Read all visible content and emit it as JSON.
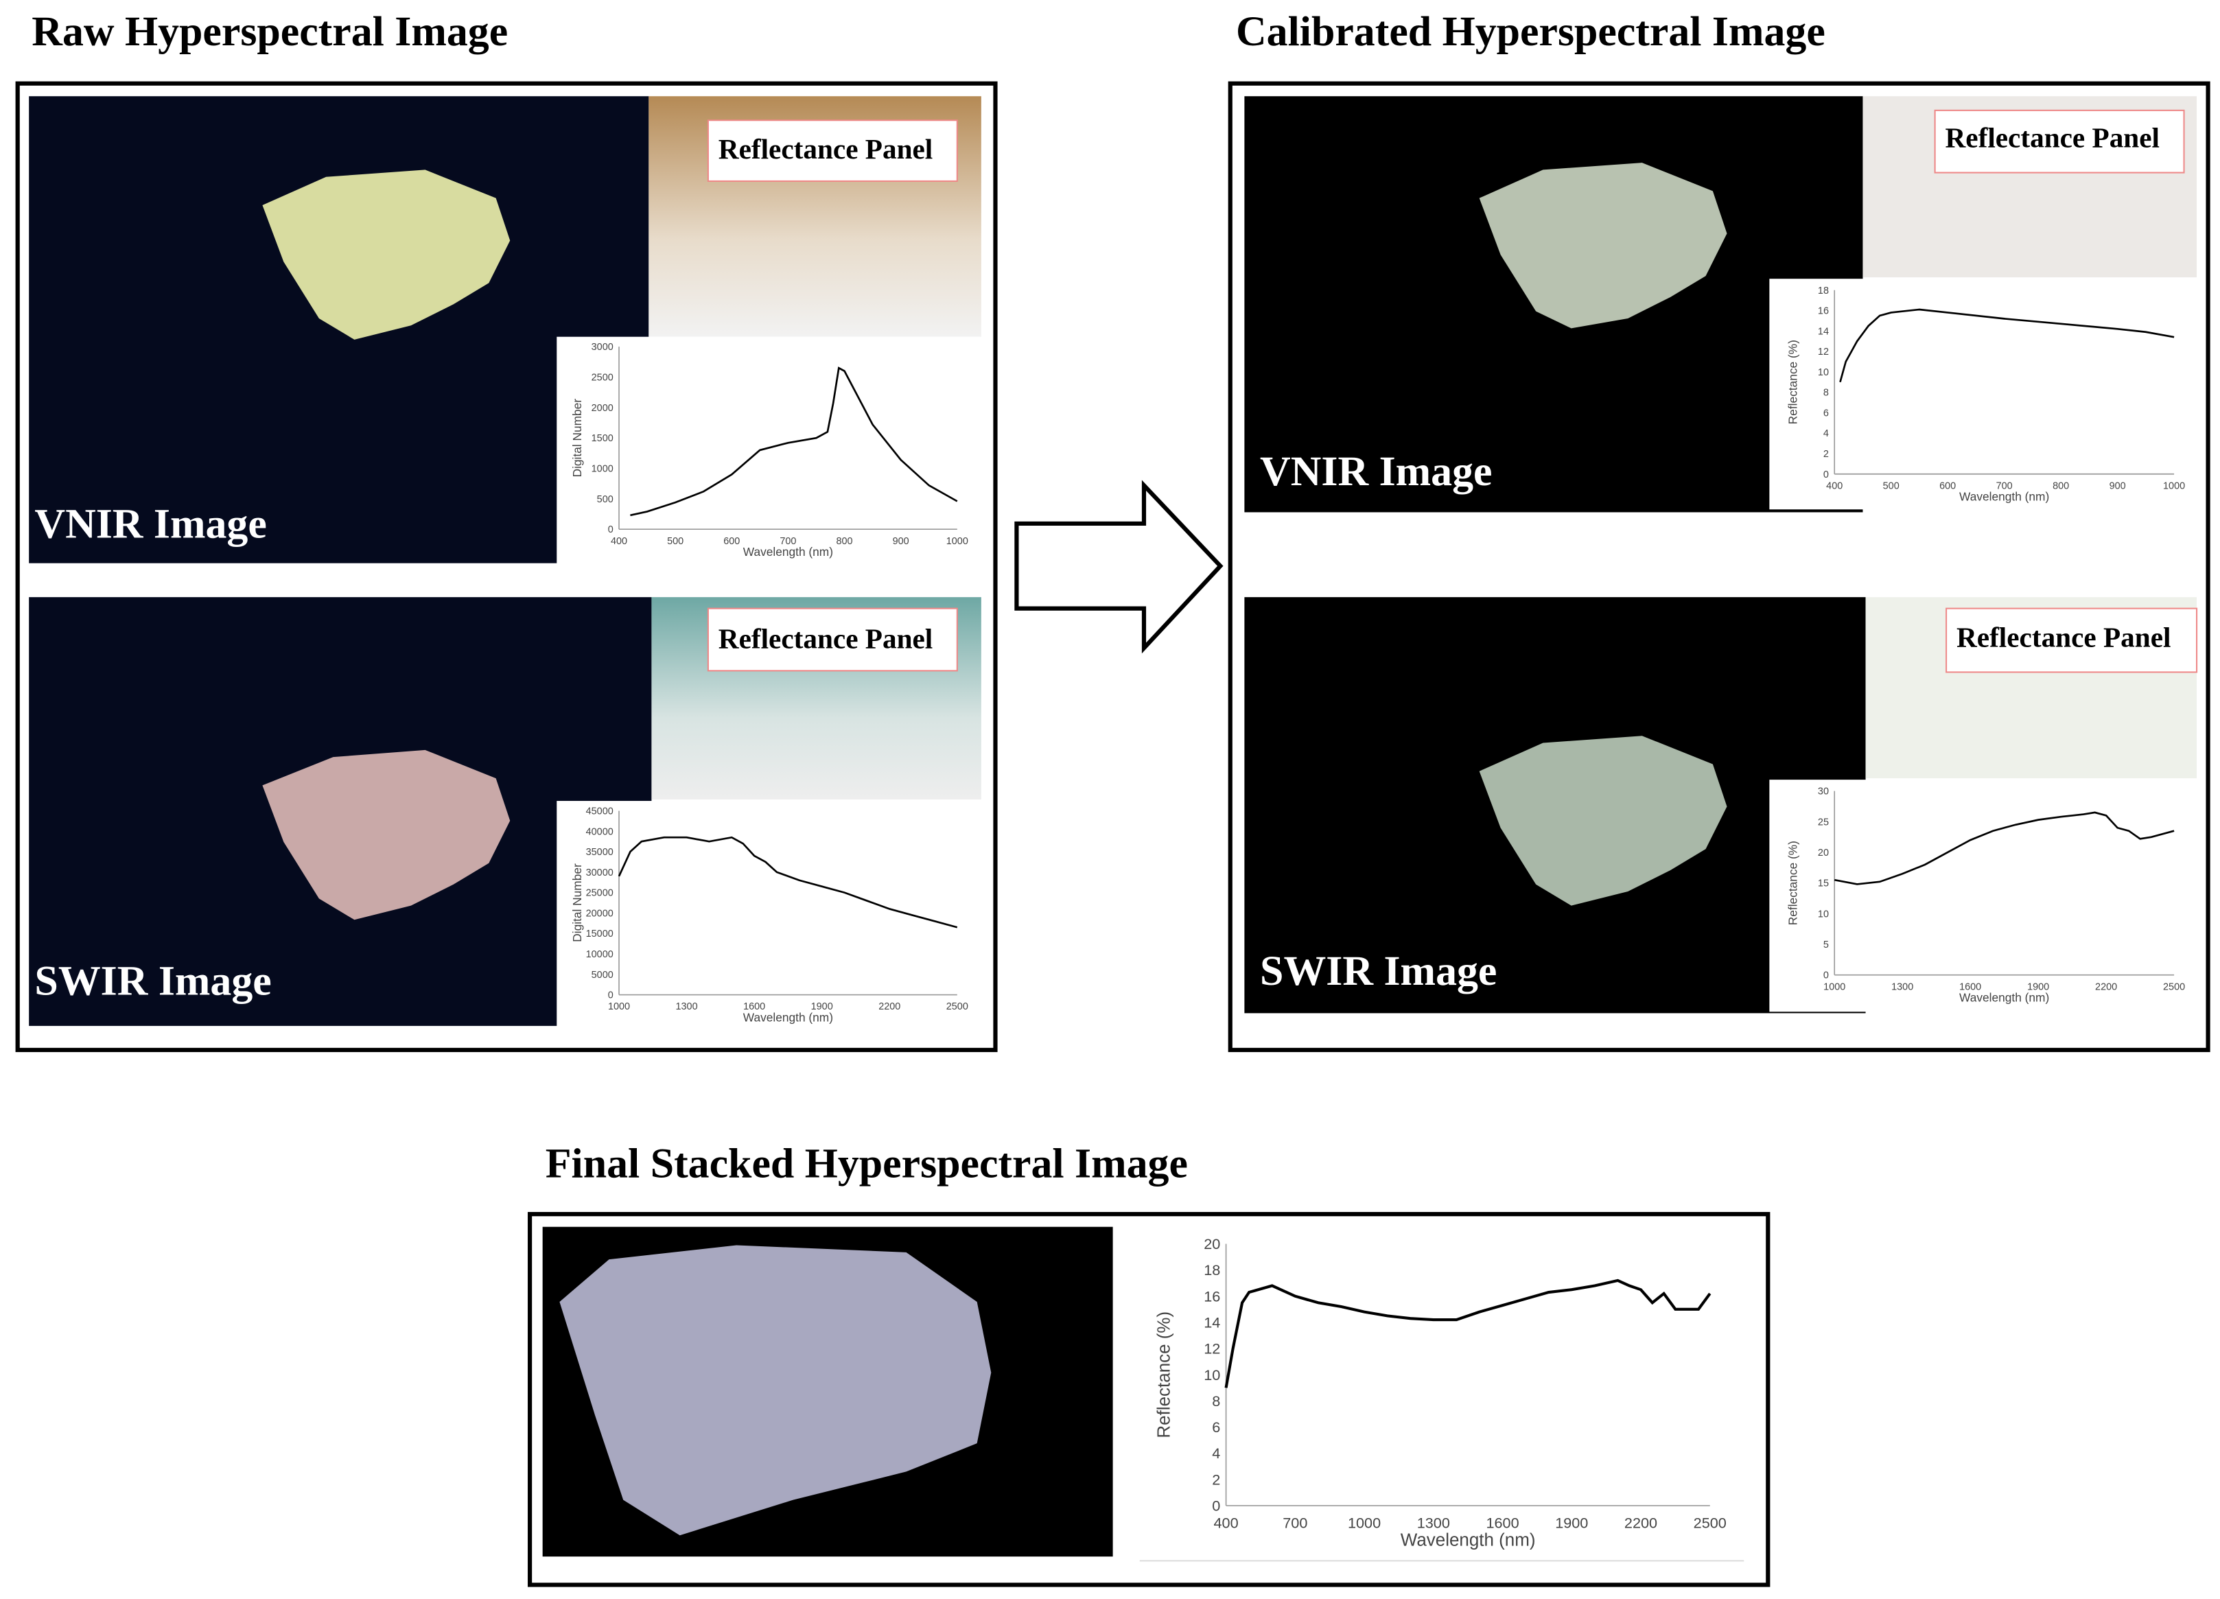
{
  "figure": {
    "raw_title": "Raw Hyperspectral Image",
    "calibrated_title": "Calibrated Hyperspectral Image",
    "final_title": "Final Stacked Hyperspectral Image",
    "panels": [
      {
        "label": "VNIR Image",
        "panel_label": "Reflectance Panel"
      },
      {
        "label": "SWIR Image",
        "panel_label": "Reflectance Panel"
      },
      {
        "label": "VNIR Image",
        "panel_label": "Reflectance Panel"
      },
      {
        "label": "SWIR Image",
        "panel_label": "Reflectance Panel"
      }
    ]
  },
  "chart_data": [
    {
      "type": "line",
      "x_label": "Wavelength (nm)",
      "y_label": "Digital Number",
      "color": "#000000",
      "x": [
        420,
        450,
        500,
        550,
        600,
        650,
        700,
        750,
        770,
        780,
        790,
        800,
        850,
        900,
        950,
        1000
      ],
      "values": [
        230,
        290,
        440,
        620,
        900,
        1300,
        1420,
        1500,
        1600,
        2070,
        2650,
        2600,
        1720,
        1140,
        720,
        460
      ],
      "xlim": [
        400,
        1000
      ],
      "xticks": [
        400,
        500,
        600,
        700,
        800,
        900,
        1000
      ],
      "ylim": [
        0,
        3000
      ],
      "yticks": [
        0,
        500,
        1000,
        1500,
        2000,
        2500,
        3000
      ]
    },
    {
      "type": "line",
      "x_label": "Wavelength (nm)",
      "y_label": "Digital Number",
      "color": "#000000",
      "x": [
        1000,
        1050,
        1100,
        1200,
        1300,
        1400,
        1500,
        1550,
        1600,
        1650,
        1700,
        1800,
        1900,
        2000,
        2100,
        2200,
        2300,
        2400,
        2500
      ],
      "values": [
        29000,
        35000,
        37500,
        38500,
        38500,
        37500,
        38500,
        37000,
        34000,
        32500,
        30000,
        28000,
        26500,
        25000,
        23000,
        21000,
        19500,
        18000,
        16500
      ],
      "xlim": [
        1000,
        2500
      ],
      "xticks": [
        1000,
        1300,
        1600,
        1900,
        2200,
        2500
      ],
      "ylim": [
        0,
        45000
      ],
      "yticks": [
        0,
        5000,
        10000,
        15000,
        20000,
        25000,
        30000,
        35000,
        40000,
        45000
      ]
    },
    {
      "type": "line",
      "x_label": "Wavelength (nm)",
      "y_label": "Reflectance (%)",
      "color": "#000000",
      "x": [
        410,
        420,
        440,
        460,
        480,
        500,
        550,
        600,
        700,
        800,
        900,
        950,
        1000
      ],
      "values": [
        9,
        11,
        13,
        14.5,
        15.5,
        15.8,
        16.1,
        15.8,
        15.2,
        14.7,
        14.2,
        13.9,
        13.4
      ],
      "xlim": [
        400,
        1000
      ],
      "xticks": [
        400,
        500,
        600,
        700,
        800,
        900,
        1000
      ],
      "ylim": [
        0,
        18
      ],
      "yticks": [
        0,
        2,
        4,
        6,
        8,
        10,
        12,
        14,
        16,
        18
      ]
    },
    {
      "type": "line",
      "x_label": "Wavelength (nm)",
      "y_label": "Reflectance (%)",
      "color": "#000000",
      "x": [
        1000,
        1100,
        1200,
        1300,
        1400,
        1500,
        1600,
        1700,
        1800,
        1900,
        2000,
        2100,
        2150,
        2200,
        2250,
        2300,
        2350,
        2400,
        2500
      ],
      "values": [
        15.5,
        14.8,
        15.2,
        16.5,
        18,
        20,
        22,
        23.5,
        24.5,
        25.3,
        25.8,
        26.2,
        26.5,
        26,
        24,
        23.5,
        22.2,
        22.5,
        23.5
      ],
      "xlim": [
        1000,
        2500
      ],
      "xticks": [
        1000,
        1300,
        1600,
        1900,
        2200,
        2500
      ],
      "ylim": [
        0,
        30
      ],
      "yticks": [
        0,
        5,
        10,
        15,
        20,
        25,
        30
      ]
    },
    {
      "type": "line",
      "x_label": "Wavelength (nm)",
      "y_label": "Reflectance (%)",
      "color": "#000000",
      "x": [
        400,
        430,
        470,
        500,
        600,
        700,
        800,
        900,
        1000,
        1100,
        1200,
        1300,
        1400,
        1500,
        1600,
        1700,
        1800,
        1900,
        2000,
        2100,
        2150,
        2200,
        2250,
        2300,
        2350,
        2400,
        2450,
        2500
      ],
      "values": [
        9,
        12,
        15.5,
        16.3,
        16.8,
        16,
        15.5,
        15.2,
        14.8,
        14.5,
        14.3,
        14.2,
        14.2,
        14.8,
        15.3,
        15.8,
        16.3,
        16.5,
        16.8,
        17.2,
        16.8,
        16.5,
        15.5,
        16.2,
        15,
        15,
        15,
        16.2
      ],
      "xlim": [
        400,
        2500
      ],
      "xticks": [
        400,
        700,
        1000,
        1300,
        1600,
        1900,
        2200,
        2500
      ],
      "ylim": [
        0,
        20
      ],
      "yticks": [
        0,
        2,
        4,
        6,
        8,
        10,
        12,
        14,
        16,
        18,
        20
      ]
    }
  ]
}
